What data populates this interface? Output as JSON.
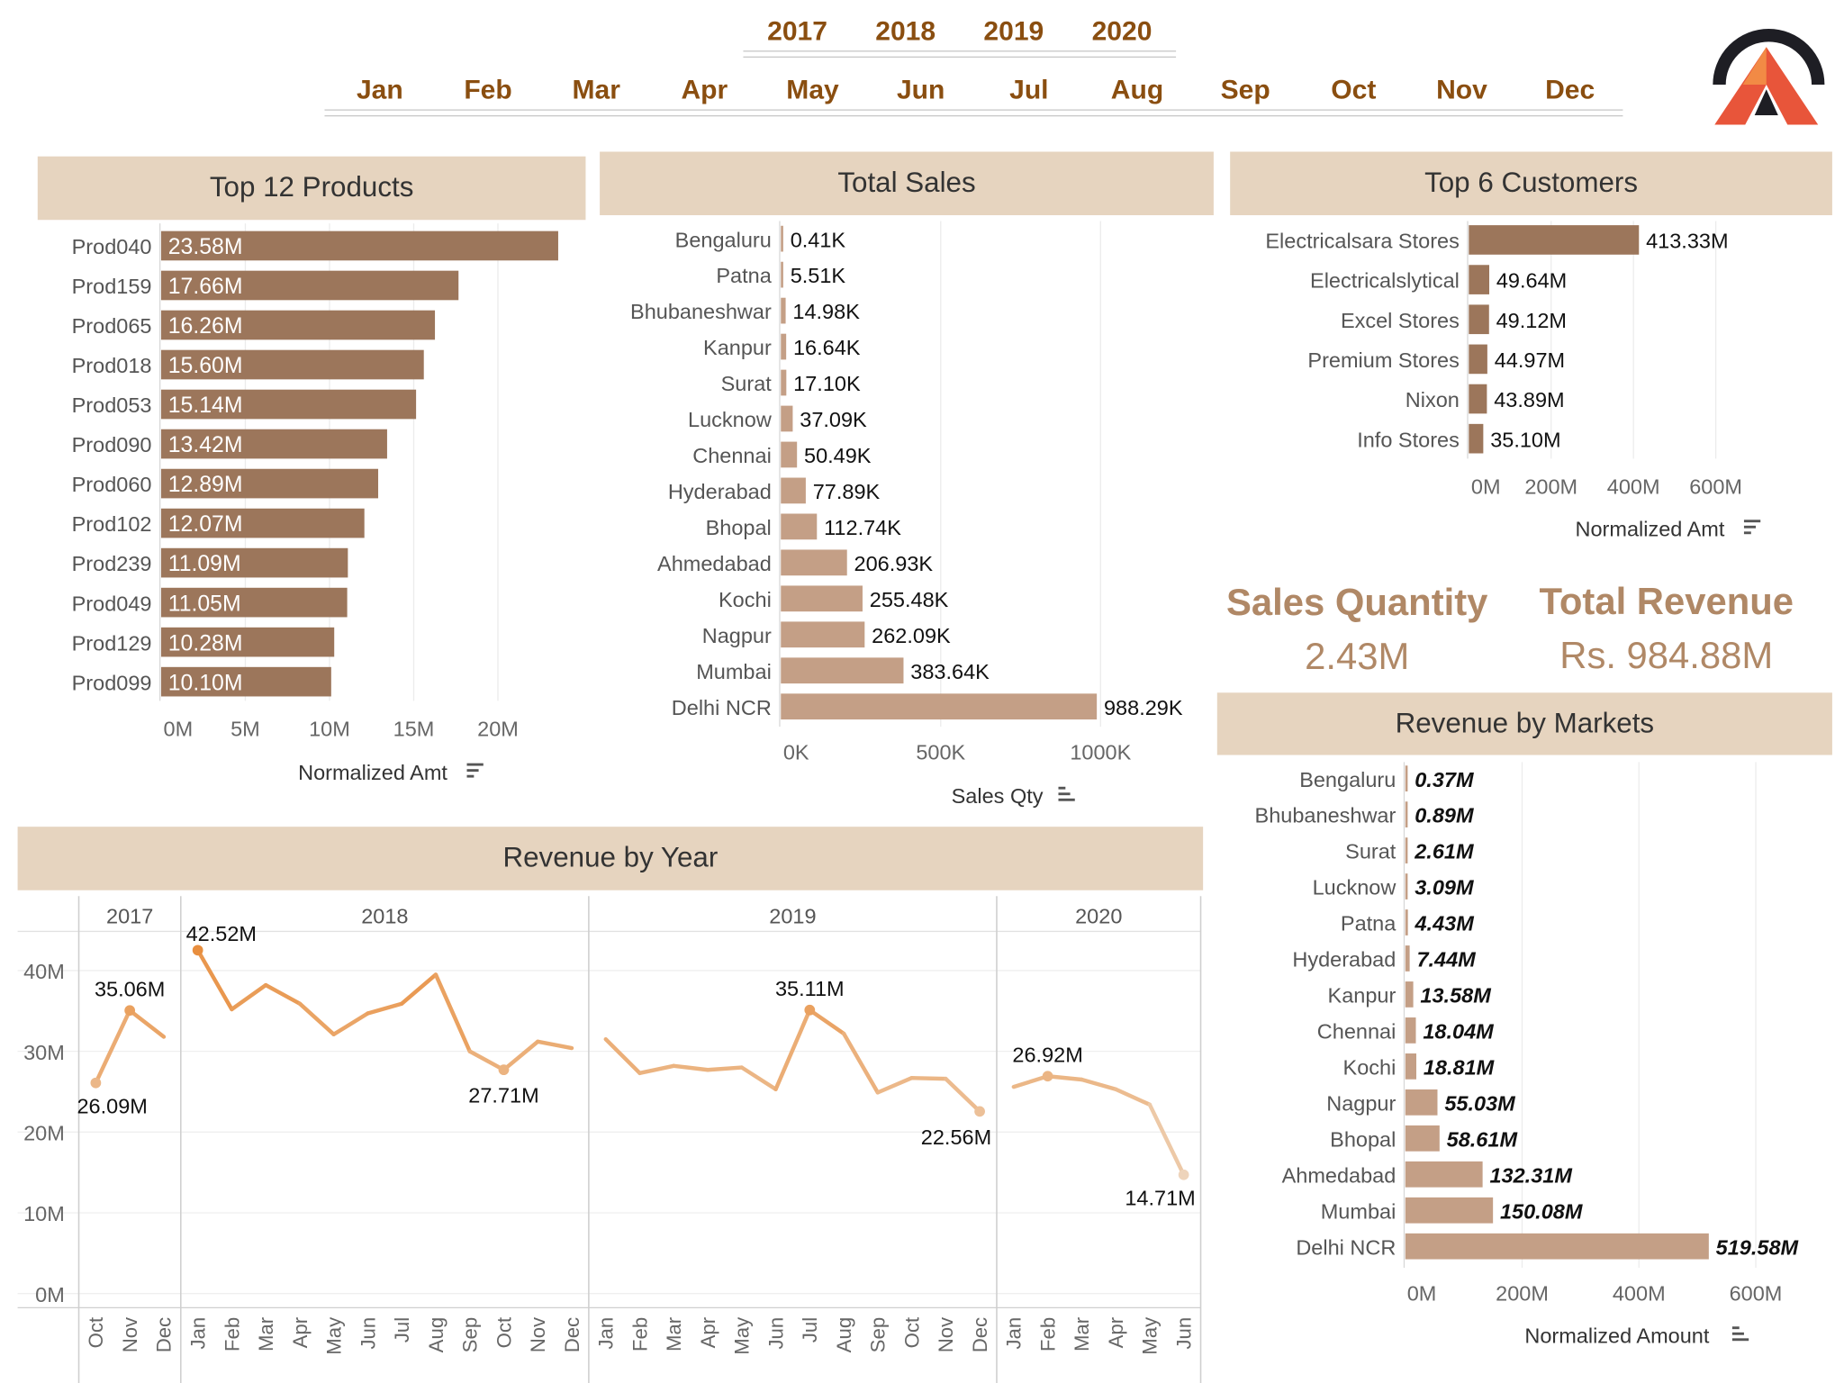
{
  "filters": {
    "years": [
      "2017",
      "2018",
      "2019",
      "2020"
    ],
    "months": [
      "Jan",
      "Feb",
      "Mar",
      "Apr",
      "May",
      "Jun",
      "Jul",
      "Aug",
      "Sep",
      "Oct",
      "Nov",
      "Dec"
    ]
  },
  "kpis": {
    "sales_quantity": {
      "label": "Sales Quantity",
      "value": "2.43M"
    },
    "total_revenue": {
      "label": "Total Revenue",
      "value": "Rs. 984.88M"
    }
  },
  "colors": {
    "bar_dark": "#9c765b",
    "bar_light": "#c49f86",
    "header_bg": "#e6d4bf",
    "kpi_text": "#b08866",
    "filter_text": "#8a4e10",
    "line_accent": "#e89649"
  },
  "chart_data": [
    {
      "id": "top-products",
      "type": "bar",
      "orientation": "horizontal",
      "title": "Top 12 Products",
      "xlabel": "Normalized Amt",
      "categories": [
        "Prod040",
        "Prod159",
        "Prod065",
        "Prod018",
        "Prod053",
        "Prod090",
        "Prod060",
        "Prod102",
        "Prod239",
        "Prod049",
        "Prod129",
        "Prod099"
      ],
      "values": [
        23.58,
        17.66,
        16.26,
        15.6,
        15.14,
        13.42,
        12.89,
        12.07,
        11.09,
        11.05,
        10.28,
        10.1
      ],
      "labels": [
        "23.58M",
        "17.66M",
        "16.26M",
        "15.60M",
        "15.14M",
        "13.42M",
        "12.89M",
        "12.07M",
        "11.09M",
        "11.05M",
        "10.28M",
        "10.10M"
      ],
      "xlim": [
        0,
        25
      ],
      "xticks": [
        0,
        5,
        10,
        15,
        20
      ],
      "xtick_labels": [
        "0M",
        "5M",
        "10M",
        "15M",
        "20M"
      ]
    },
    {
      "id": "total-sales",
      "type": "bar",
      "orientation": "horizontal",
      "title": "Total Sales",
      "xlabel": "Sales Qty",
      "categories": [
        "Bengaluru",
        "Patna",
        "Bhubaneshwar",
        "Kanpur",
        "Surat",
        "Lucknow",
        "Chennai",
        "Hyderabad",
        "Bhopal",
        "Ahmedabad",
        "Kochi",
        "Nagpur",
        "Mumbai",
        "Delhi NCR"
      ],
      "values": [
        0.41,
        5.51,
        14.98,
        16.64,
        17.1,
        37.09,
        50.49,
        77.89,
        112.74,
        206.93,
        255.48,
        262.09,
        383.64,
        988.29
      ],
      "labels": [
        "0.41K",
        "5.51K",
        "14.98K",
        "16.64K",
        "17.10K",
        "37.09K",
        "50.49K",
        "77.89K",
        "112.74K",
        "206.93K",
        "255.48K",
        "262.09K",
        "383.64K",
        "988.29K"
      ],
      "xlim": [
        0,
        1030
      ],
      "xticks": [
        0,
        500,
        1000
      ],
      "xtick_labels": [
        "0K",
        "500K",
        "1000K"
      ]
    },
    {
      "id": "top-customers",
      "type": "bar",
      "orientation": "horizontal",
      "title": "Top 6 Customers",
      "xlabel": "Normalized Amt",
      "categories": [
        "Electricalsara Stores",
        "Electricalslytical",
        "Excel Stores",
        "Premium Stores",
        "Nixon",
        "Info Stores"
      ],
      "values": [
        413.33,
        49.64,
        49.12,
        44.97,
        43.89,
        35.1
      ],
      "labels": [
        "413.33M",
        "49.64M",
        "49.12M",
        "44.97M",
        "43.89M",
        "35.10M"
      ],
      "xlim": [
        0,
        600
      ],
      "xticks": [
        0,
        200,
        400,
        600
      ],
      "xtick_labels": [
        "0M",
        "200M",
        "400M",
        "600M"
      ]
    },
    {
      "id": "revenue-by-markets",
      "type": "bar",
      "orientation": "horizontal",
      "title": "Revenue by Markets",
      "xlabel": "Normalized Amount",
      "categories": [
        "Bengaluru",
        "Bhubaneshwar",
        "Surat",
        "Lucknow",
        "Patna",
        "Hyderabad",
        "Kanpur",
        "Chennai",
        "Kochi",
        "Nagpur",
        "Bhopal",
        "Ahmedabad",
        "Mumbai",
        "Delhi NCR"
      ],
      "values": [
        0.37,
        0.89,
        2.61,
        3.09,
        4.43,
        7.44,
        13.58,
        18.04,
        18.81,
        55.03,
        58.61,
        132.31,
        150.08,
        519.58
      ],
      "labels": [
        "0.37M",
        "0.89M",
        "2.61M",
        "3.09M",
        "4.43M",
        "7.44M",
        "13.58M",
        "18.04M",
        "18.81M",
        "55.03M",
        "58.61M",
        "132.31M",
        "150.08M",
        "519.58M"
      ],
      "xlim": [
        0,
        600
      ],
      "xticks": [
        0,
        200,
        400,
        600
      ],
      "xtick_labels": [
        "0M",
        "200M",
        "400M",
        "600M"
      ]
    },
    {
      "id": "revenue-by-year",
      "type": "line",
      "title": "Revenue by Year",
      "ylim": [
        0,
        42.52
      ],
      "yticks": [
        0,
        10,
        20,
        30,
        40
      ],
      "ytick_labels": [
        "0M",
        "10M",
        "20M",
        "30M",
        "40M"
      ],
      "groups": [
        {
          "year": "2017",
          "months": [
            "Oct",
            "Nov",
            "Dec"
          ],
          "values": [
            26.09,
            35.06,
            31.8
          ]
        },
        {
          "year": "2018",
          "months": [
            "Jan",
            "Feb",
            "Mar",
            "Apr",
            "May",
            "Jun",
            "Jul",
            "Aug",
            "Sep",
            "Oct",
            "Nov",
            "Dec"
          ],
          "values": [
            42.52,
            35.2,
            38.2,
            35.9,
            32.1,
            34.7,
            35.9,
            39.5,
            30.0,
            27.71,
            31.2,
            30.4
          ]
        },
        {
          "year": "2019",
          "months": [
            "Jan",
            "Feb",
            "Mar",
            "Apr",
            "May",
            "Jun",
            "Jul",
            "Aug",
            "Sep",
            "Oct",
            "Nov",
            "Dec"
          ],
          "values": [
            31.5,
            27.3,
            28.2,
            27.7,
            28.0,
            25.3,
            35.11,
            32.2,
            24.9,
            26.7,
            26.6,
            22.56
          ]
        },
        {
          "year": "2020",
          "months": [
            "Jan",
            "Feb",
            "Mar",
            "Apr",
            "May",
            "Jun"
          ],
          "values": [
            25.6,
            26.92,
            26.5,
            25.3,
            23.4,
            14.71
          ]
        }
      ],
      "annotations": [
        {
          "group": 0,
          "index": 0,
          "label": "26.09M"
        },
        {
          "group": 0,
          "index": 1,
          "label": "35.06M"
        },
        {
          "group": 1,
          "index": 0,
          "label": "42.52M"
        },
        {
          "group": 1,
          "index": 9,
          "label": "27.71M"
        },
        {
          "group": 2,
          "index": 6,
          "label": "35.11M"
        },
        {
          "group": 2,
          "index": 11,
          "label": "22.56M"
        },
        {
          "group": 3,
          "index": 1,
          "label": "26.92M"
        },
        {
          "group": 3,
          "index": 5,
          "label": "14.71M"
        }
      ]
    }
  ]
}
